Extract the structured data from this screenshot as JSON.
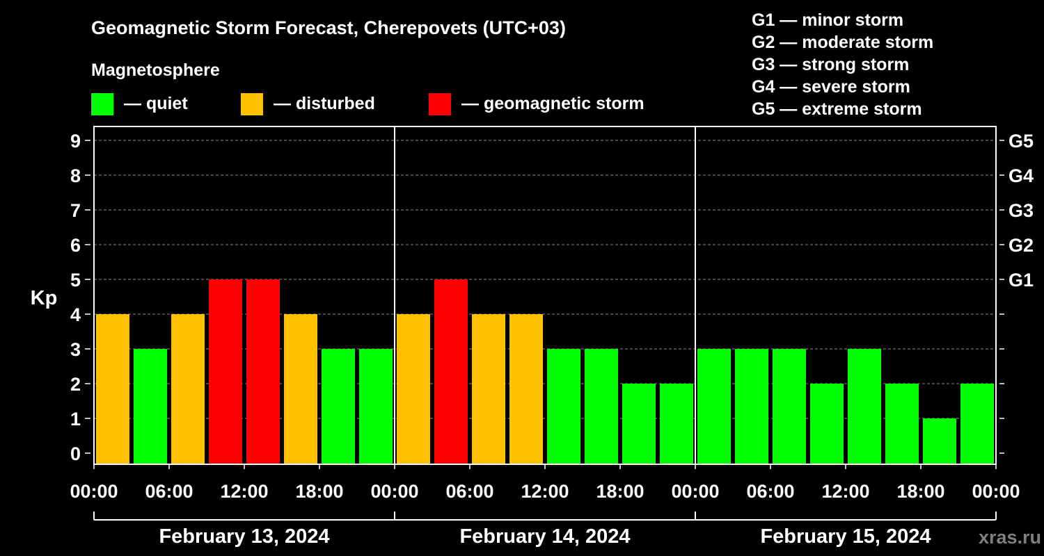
{
  "header": {
    "title": "Geomagnetic Storm Forecast, Cherepovets (UTC+03)",
    "subtitle": "Magnetosphere"
  },
  "legend": [
    {
      "label": "— quiet",
      "color": "#00ff00"
    },
    {
      "label": "— disturbed",
      "color": "#ffc000"
    },
    {
      "label": "— geomagnetic storm",
      "color": "#ff0000"
    }
  ],
  "storm_scale": [
    {
      "label": "G1 — minor storm"
    },
    {
      "label": "G2 — moderate storm"
    },
    {
      "label": "G3 — strong storm"
    },
    {
      "label": "G4 — severe storm"
    },
    {
      "label": "G5 — extreme storm"
    }
  ],
  "watermark": "xras.ru",
  "chart_data": {
    "type": "bar",
    "title": "Geomagnetic Storm Forecast, Cherepovets (UTC+03)",
    "ylabel": "Kp",
    "ylim": [
      0,
      9
    ],
    "yticks": [
      0,
      1,
      2,
      3,
      4,
      5,
      6,
      7,
      8,
      9
    ],
    "right_axis": [
      {
        "kp": 5,
        "label": "G1"
      },
      {
        "kp": 6,
        "label": "G2"
      },
      {
        "kp": 7,
        "label": "G3"
      },
      {
        "kp": 8,
        "label": "G4"
      },
      {
        "kp": 9,
        "label": "G5"
      }
    ],
    "hours_per_bar": 3,
    "xtick_labels": [
      "00:00",
      "06:00",
      "12:00",
      "18:00",
      "00:00",
      "06:00",
      "12:00",
      "18:00",
      "00:00",
      "06:00",
      "12:00",
      "18:00",
      "00:00"
    ],
    "days": [
      "February 13, 2024",
      "February 14, 2024",
      "February 15, 2024"
    ],
    "values": [
      4,
      3,
      4,
      5,
      5,
      4,
      3,
      3,
      4,
      5,
      4,
      4,
      3,
      3,
      2,
      2,
      3,
      3,
      3,
      2,
      3,
      2,
      1,
      2
    ],
    "level_colors": {
      "quiet": "#00ff00",
      "disturbed": "#ffc000",
      "storm": "#ff0000"
    },
    "thresholds": {
      "disturbed": 4,
      "storm": 5
    },
    "grid": true
  }
}
